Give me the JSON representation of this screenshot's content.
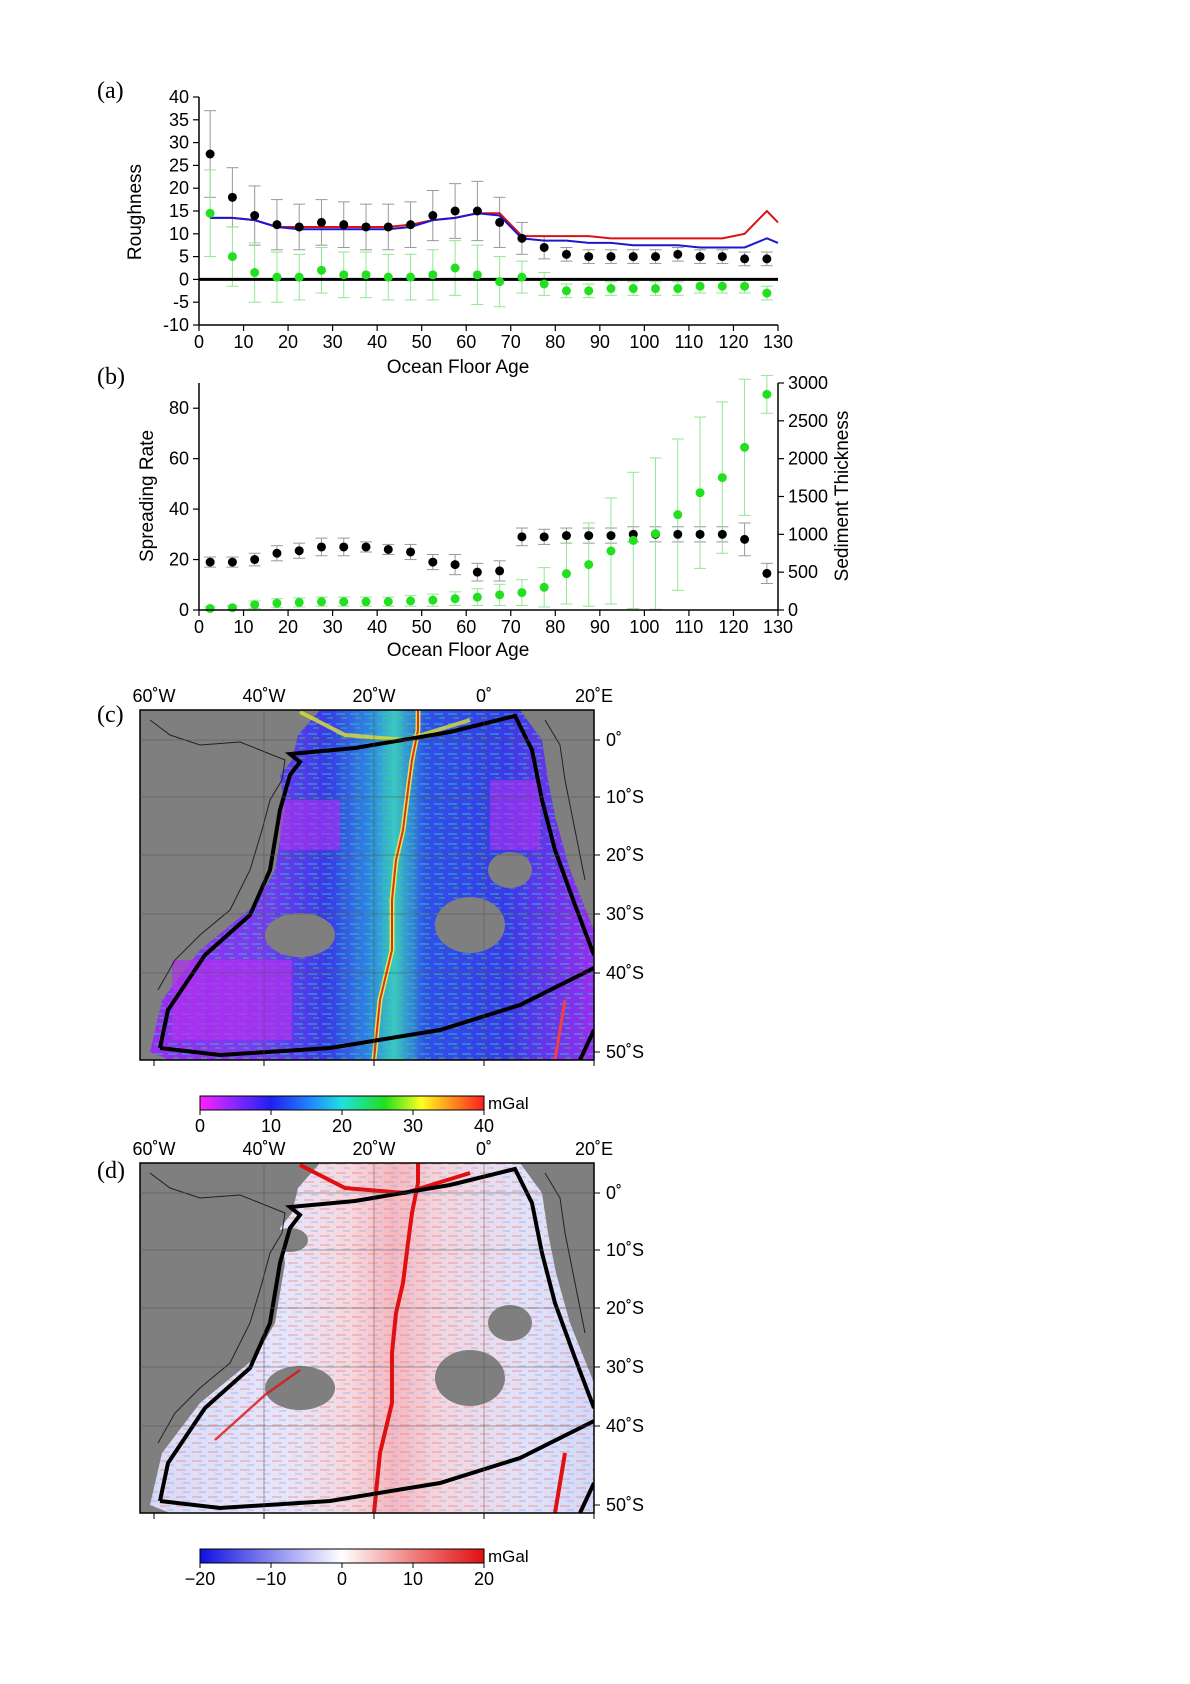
{
  "panel_labels": {
    "a": "(a)",
    "b": "(b)",
    "c": "(c)",
    "d": "(d)"
  },
  "colors": {
    "black": "#000000",
    "green": "#22e020",
    "green_err": "#90e890",
    "gray_err": "#999999",
    "red": "#dd1111",
    "blue": "#1a1acc",
    "land": "#7f7f7f"
  },
  "chart_data": [
    {
      "id": "a",
      "type": "scatter",
      "xlabel": "Ocean Floor Age",
      "ylabel": "Roughness",
      "xlim": [
        0,
        130
      ],
      "ylim": [
        -10,
        40
      ],
      "xticks": [
        0,
        10,
        20,
        30,
        40,
        50,
        60,
        70,
        80,
        90,
        100,
        110,
        120,
        130
      ],
      "yticks": [
        -10,
        -5,
        0,
        5,
        10,
        15,
        20,
        25,
        30,
        35,
        40
      ],
      "x": [
        2.5,
        7.5,
        12.5,
        17.5,
        22.5,
        27.5,
        32.5,
        37.5,
        42.5,
        47.5,
        52.5,
        57.5,
        62.5,
        67.5,
        72.5,
        77.5,
        82.5,
        87.5,
        92.5,
        97.5,
        102.5,
        107.5,
        112.5,
        117.5,
        122.5,
        127.5
      ],
      "series": [
        {
          "kind": "points",
          "color": "black",
          "values": [
            27.5,
            18,
            14,
            12,
            11.5,
            12.5,
            12,
            11.5,
            11.5,
            12,
            14,
            15,
            15,
            12.5,
            9,
            7,
            5.5,
            5,
            5,
            5,
            5,
            5.5,
            5,
            5,
            4.5,
            4.5
          ],
          "err": [
            9.5,
            6.5,
            6.5,
            5.5,
            5,
            5,
            5,
            5,
            5,
            5,
            5.5,
            6,
            6.5,
            5.5,
            3.5,
            2.5,
            1.5,
            1.5,
            1.5,
            1.5,
            1.5,
            1.5,
            1.5,
            1.5,
            1.5,
            1.5
          ]
        },
        {
          "kind": "points",
          "color": "green",
          "values": [
            14.5,
            5,
            1.5,
            0.5,
            0.5,
            2,
            1,
            1,
            0.5,
            0.5,
            1,
            2.5,
            1,
            -0.5,
            0.5,
            -1,
            -2.5,
            -2.5,
            -2,
            -2,
            -2,
            -2,
            -1.5,
            -1.5,
            -1.5,
            -3
          ],
          "err": [
            9.5,
            6.5,
            6.5,
            5.5,
            5,
            5,
            5,
            5,
            5,
            5,
            5.5,
            6,
            6.5,
            5.5,
            3.5,
            2.5,
            1.5,
            1.5,
            1.5,
            1.5,
            1.5,
            1.5,
            1.5,
            1.5,
            1.5,
            1.5
          ]
        },
        {
          "kind": "line",
          "color": "red",
          "x": [
            2.5,
            7.5,
            12.5,
            17.5,
            22.5,
            27.5,
            32.5,
            37.5,
            42.5,
            47.5,
            52.5,
            57.5,
            62.5,
            67.5,
            72.5,
            77.5,
            82.5,
            87.5,
            92.5,
            97.5,
            102.5,
            107.5,
            112.5,
            117.5,
            122.5,
            127.5,
            130
          ],
          "values": [
            13.5,
            13.5,
            13,
            11.5,
            11.5,
            11.5,
            11.5,
            11.5,
            11.5,
            12,
            13,
            13.5,
            14.5,
            14.5,
            9.5,
            9.5,
            9.5,
            9.5,
            9,
            9,
            9,
            9,
            9,
            9,
            10,
            15,
            12.5
          ]
        },
        {
          "kind": "line",
          "color": "blue",
          "x": [
            2.5,
            7.5,
            12.5,
            17.5,
            22.5,
            27.5,
            32.5,
            37.5,
            42.5,
            47.5,
            52.5,
            57.5,
            62.5,
            67.5,
            72.5,
            77.5,
            82.5,
            87.5,
            92.5,
            97.5,
            102.5,
            107.5,
            112.5,
            117.5,
            122.5,
            127.5,
            130
          ],
          "values": [
            13.5,
            13.5,
            13,
            11.5,
            11,
            11,
            11,
            11,
            11,
            11.5,
            13,
            13.5,
            14.5,
            14,
            9,
            8.5,
            8.5,
            8,
            8,
            7.5,
            7.5,
            7.5,
            7,
            7,
            7,
            9,
            8
          ]
        },
        {
          "kind": "hline",
          "color": "black",
          "y": 0
        }
      ]
    },
    {
      "id": "b",
      "type": "scatter",
      "xlabel": "Ocean Floor Age",
      "ylabel": "Spreading Rate",
      "y2label": "Sediment Thickness",
      "xlim": [
        0,
        130
      ],
      "ylim": [
        0,
        90
      ],
      "y2lim": [
        0,
        3000
      ],
      "xticks": [
        0,
        10,
        20,
        30,
        40,
        50,
        60,
        70,
        80,
        90,
        100,
        110,
        120,
        130
      ],
      "yticks": [
        0,
        20,
        40,
        60,
        80
      ],
      "y2ticks": [
        0,
        500,
        1000,
        1500,
        2000,
        2500,
        3000
      ],
      "x": [
        2.5,
        7.5,
        12.5,
        17.5,
        22.5,
        27.5,
        32.5,
        37.5,
        42.5,
        47.5,
        52.5,
        57.5,
        62.5,
        67.5,
        72.5,
        77.5,
        82.5,
        87.5,
        92.5,
        97.5,
        102.5,
        107.5,
        112.5,
        117.5,
        122.5,
        127.5
      ],
      "series": [
        {
          "kind": "points",
          "color": "black",
          "axis": "left",
          "values": [
            19,
            19,
            20,
            22.5,
            23.5,
            25,
            25,
            25,
            24,
            23,
            19,
            18,
            15,
            15.5,
            29,
            29,
            29.5,
            29.5,
            29.5,
            30,
            30,
            30,
            30,
            30,
            28,
            14.5
          ],
          "err": [
            2,
            2,
            2.5,
            3,
            3,
            3.5,
            3.5,
            2,
            2,
            3,
            3,
            4,
            3.5,
            4,
            3.5,
            3,
            3,
            3,
            3,
            3,
            3,
            3,
            3,
            3,
            6.5,
            4
          ]
        },
        {
          "kind": "points",
          "color": "green",
          "axis": "right",
          "values": [
            20,
            30,
            70,
            90,
            100,
            110,
            110,
            110,
            110,
            120,
            130,
            150,
            170,
            200,
            230,
            300,
            480,
            600,
            780,
            920,
            1010,
            1260,
            1550,
            1750,
            2150,
            2850
          ],
          "err": [
            20,
            25,
            50,
            60,
            60,
            60,
            60,
            60,
            60,
            70,
            80,
            90,
            110,
            140,
            170,
            260,
            400,
            550,
            700,
            900,
            1000,
            1000,
            1000,
            1000,
            900,
            250
          ]
        }
      ]
    }
  ],
  "maps": {
    "c": {
      "lon_labels": [
        "60˚W",
        "40˚W",
        "20˚W",
        "0˚",
        "20˚E"
      ],
      "lat_labels": [
        "0˚",
        "10˚S",
        "20˚S",
        "30˚S",
        "40˚S",
        "50˚S"
      ],
      "colorbar": {
        "unit": "mGal",
        "ticks": [
          "0",
          "10",
          "20",
          "30",
          "40"
        ],
        "stops": [
          "#ff20ff",
          "#8a28ff",
          "#2020ee",
          "#2080ff",
          "#20e0e0",
          "#20e020",
          "#ffff20",
          "#ff8020",
          "#ff2020"
        ]
      }
    },
    "d": {
      "lon_labels": [
        "60˚W",
        "40˚W",
        "20˚W",
        "0˚",
        "20˚E"
      ],
      "lat_labels": [
        "0˚",
        "10˚S",
        "20˚S",
        "30˚S",
        "40˚S",
        "50˚S"
      ],
      "colorbar": {
        "unit": "mGal",
        "ticks": [
          "−20",
          "−10",
          "0",
          "10",
          "20"
        ],
        "stops": [
          "#1010e0",
          "#8888f0",
          "#ffffff",
          "#f08080",
          "#e01010"
        ]
      }
    }
  }
}
